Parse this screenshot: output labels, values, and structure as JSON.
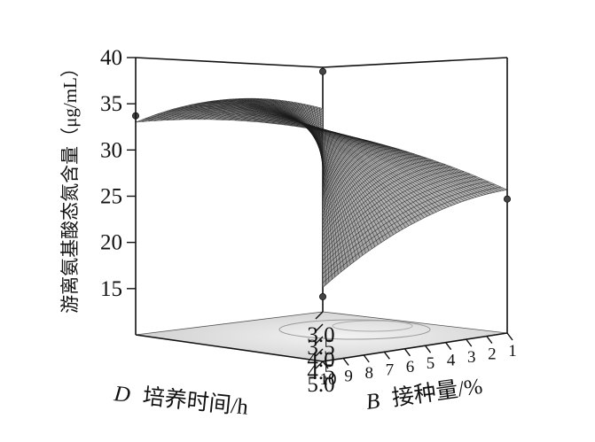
{
  "chart_data": {
    "type": "surface3d",
    "zlabel": "游离氨基酸态氮含量（μg/mL）",
    "xlabel_var": "D",
    "xlabel_text": "培养时间/h",
    "ylabel_var": "B",
    "ylabel_text": "接种量/%",
    "z_ticks": [
      "40",
      "35",
      "30",
      "25",
      "20",
      "15"
    ],
    "zlim": [
      10,
      40
    ],
    "x_ticks": [
      "3.0",
      "3.5",
      "4.0",
      "4.5",
      "5.0"
    ],
    "xlim": [
      3.0,
      5.0
    ],
    "y_ticks": [
      "10",
      "9",
      "8",
      "7",
      "6",
      "5",
      "4",
      "3",
      "2",
      "1"
    ],
    "ylim": [
      1,
      10
    ],
    "corner_values": [
      {
        "x": 3.0,
        "y": 1,
        "z": 33.0
      },
      {
        "x": 5.0,
        "y": 10,
        "z": 18.0
      },
      {
        "x": 5.0,
        "y": 1,
        "z": 25.5
      },
      {
        "x": 3.0,
        "y": 10,
        "z": 32.0
      }
    ],
    "design_points": [
      {
        "x": 3.0,
        "y": 1,
        "z": 33.7
      },
      {
        "x": 5.0,
        "y": 10,
        "z": 17.0
      },
      {
        "x": 5.0,
        "y": 1,
        "z": 24.5
      },
      {
        "x": 3.0,
        "y": 10,
        "z": 36.0
      }
    ]
  }
}
